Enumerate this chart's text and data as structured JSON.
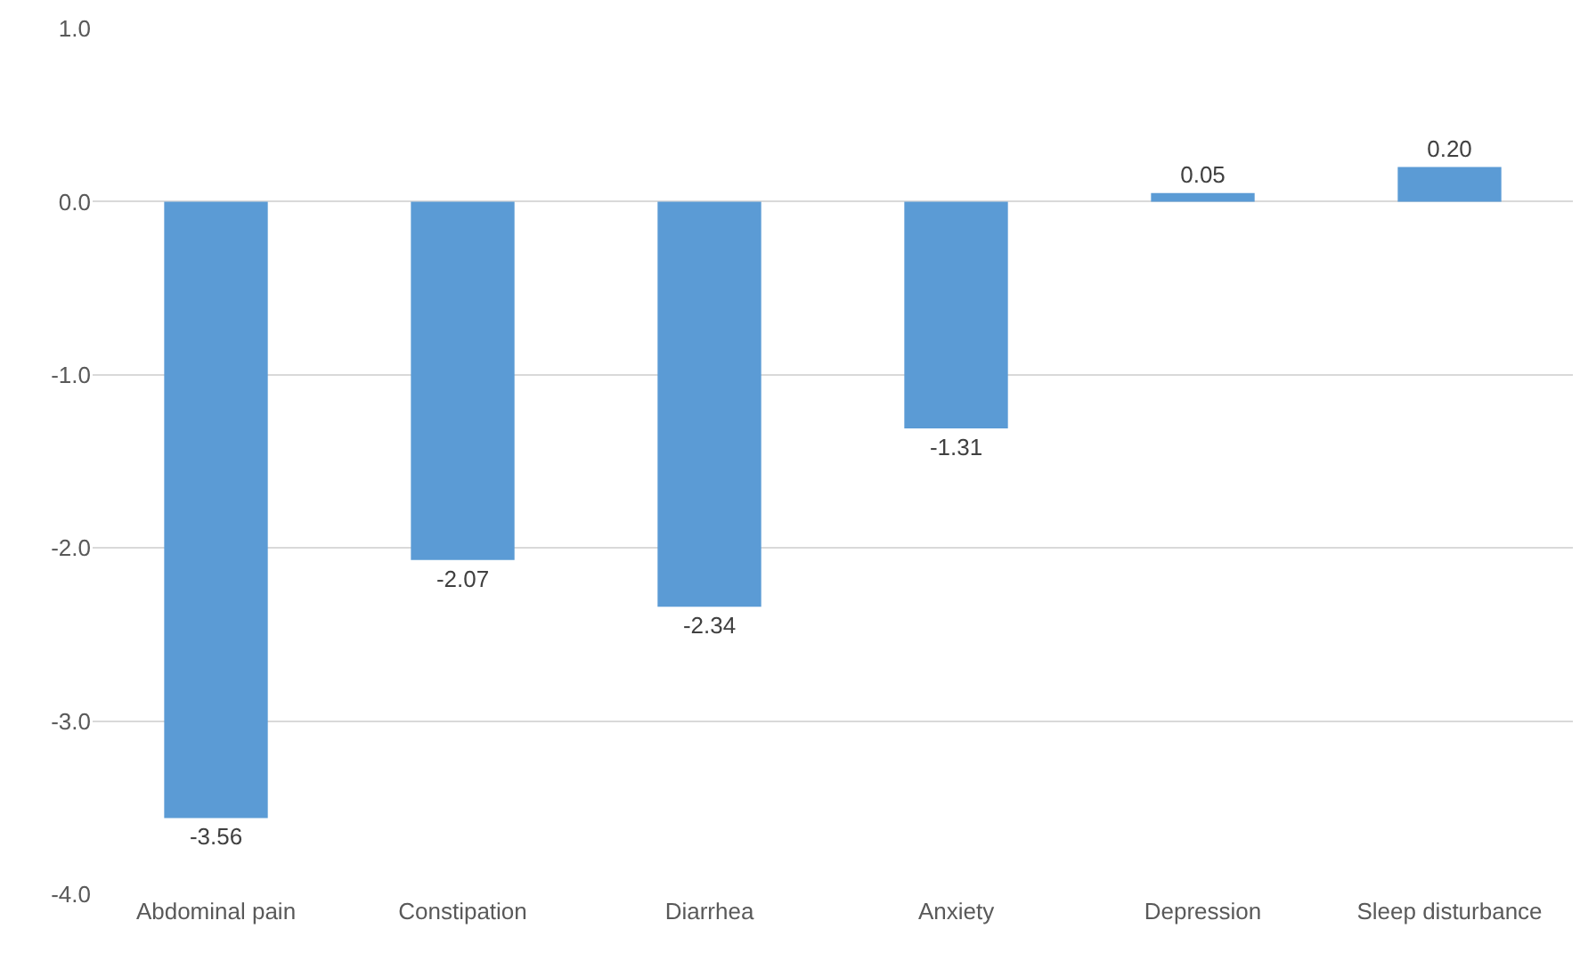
{
  "chart_data": {
    "type": "bar",
    "categories": [
      "Abdominal pain",
      "Constipation",
      "Diarrhea",
      "Anxiety",
      "Depression",
      "Sleep disturbance"
    ],
    "values": [
      -3.56,
      -2.07,
      -2.34,
      -1.31,
      0.05,
      0.2
    ],
    "value_labels": [
      "-3.56",
      "-2.07",
      "-2.34",
      "-1.31",
      "0.05",
      "0.20"
    ],
    "color": "#5b9bd5",
    "ylim": [
      -4,
      1
    ],
    "yticks": [
      {
        "value": 1,
        "label": "1.0"
      },
      {
        "value": 0,
        "label": "0.0"
      },
      {
        "value": -1,
        "label": "-1.0"
      },
      {
        "value": -2,
        "label": "-2.0"
      },
      {
        "value": -3,
        "label": "-3.0"
      },
      {
        "value": -4,
        "label": "-4.0"
      }
    ],
    "grid": "y"
  }
}
